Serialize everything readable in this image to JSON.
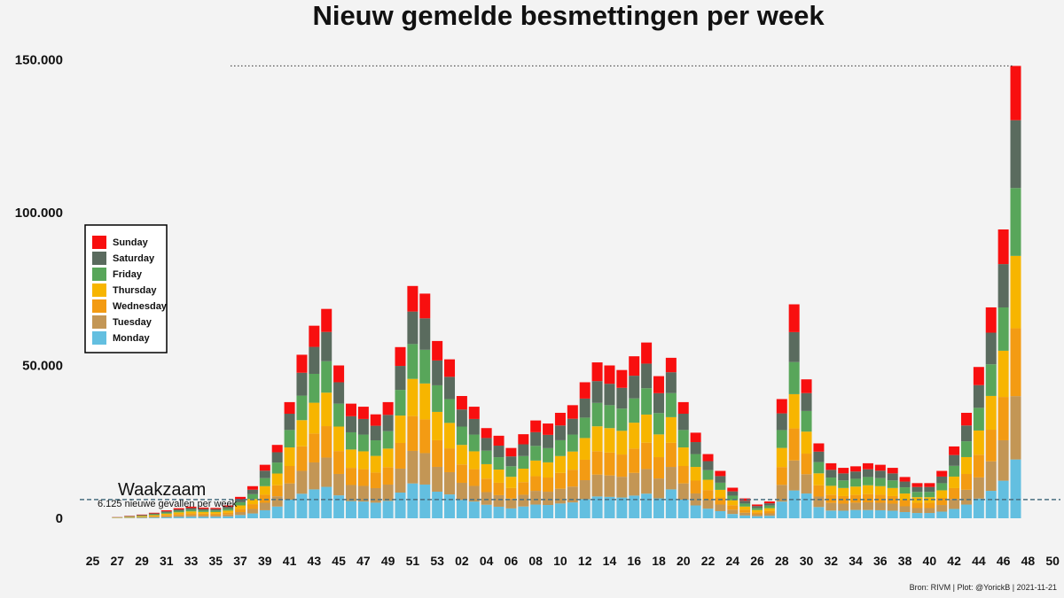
{
  "chart_data": {
    "type": "bar",
    "stacked": true,
    "title": "Nieuw gemelde besmettingen per week",
    "xlabel": "",
    "ylabel": "",
    "ylim": [
      0,
      150000
    ],
    "yticks": [
      0,
      50000,
      100000,
      150000
    ],
    "ytick_labels": [
      "0",
      "50.000",
      "100.000",
      "150.000"
    ],
    "x_axis_labels": [
      "25",
      "27",
      "29",
      "31",
      "33",
      "35",
      "37",
      "39",
      "41",
      "43",
      "45",
      "47",
      "49",
      "51",
      "53",
      "02",
      "04",
      "06",
      "08",
      "10",
      "12",
      "14",
      "16",
      "18",
      "20",
      "22",
      "24",
      "26",
      "28",
      "30",
      "32",
      "34",
      "36",
      "38",
      "40",
      "42",
      "44",
      "46",
      "48",
      "50"
    ],
    "categories": [
      "25",
      "26",
      "27",
      "28",
      "29",
      "30",
      "31",
      "32",
      "33",
      "34",
      "35",
      "36",
      "37",
      "38",
      "39",
      "40",
      "41",
      "42",
      "43",
      "44",
      "45",
      "46",
      "47",
      "48",
      "49",
      "50",
      "51",
      "52",
      "53",
      "01",
      "02",
      "03",
      "04",
      "05",
      "06",
      "07",
      "08",
      "09",
      "10",
      "11",
      "12",
      "13",
      "14",
      "15",
      "16",
      "17",
      "18",
      "19",
      "20",
      "21",
      "22",
      "23",
      "24",
      "25",
      "26",
      "27",
      "28",
      "29",
      "30",
      "31",
      "32",
      "33",
      "34",
      "35",
      "36",
      "37",
      "38",
      "39",
      "40",
      "41",
      "42",
      "43",
      "44",
      "45",
      "46",
      "47",
      "48",
      "49",
      "50"
    ],
    "totals": [
      0,
      0,
      400,
      800,
      1200,
      1800,
      2600,
      3300,
      3800,
      3500,
      3400,
      4200,
      7000,
      10500,
      17500,
      24000,
      38000,
      53500,
      63000,
      68500,
      50000,
      37500,
      36500,
      34000,
      38000,
      56000,
      76000,
      73500,
      58000,
      52000,
      40000,
      36500,
      29500,
      27000,
      23000,
      27500,
      32000,
      31000,
      34500,
      37000,
      44500,
      51000,
      50000,
      48500,
      53000,
      57500,
      46500,
      52500,
      38000,
      28000,
      21000,
      15500,
      10000,
      6500,
      4500,
      5500,
      39000,
      70000,
      45000,
      24500,
      18000,
      16500,
      17000,
      18000,
      17500,
      16500,
      13500,
      11500,
      11500,
      15500,
      23500,
      34500,
      49500,
      69000,
      94500,
      148000,
      0,
      0,
      0
    ],
    "series": [
      {
        "name": "Monday",
        "color": "#63bfe0",
        "shares": [
          0.13,
          0.13,
          0.13,
          0.13,
          0.13,
          0.13,
          0.13,
          0.14,
          0.14,
          0.14,
          0.15,
          0.15,
          0.15,
          0.15,
          0.15,
          0.16,
          0.16,
          0.15,
          0.15,
          0.15,
          0.15,
          0.15,
          0.15,
          0.15,
          0.15,
          0.15,
          0.15,
          0.15,
          0.15,
          0.15,
          0.15,
          0.15,
          0.15,
          0.14,
          0.14,
          0.14,
          0.14,
          0.14,
          0.14,
          0.14,
          0.14,
          0.14,
          0.14,
          0.14,
          0.14,
          0.14,
          0.14,
          0.18,
          0.16,
          0.15,
          0.15,
          0.15,
          0.14,
          0.14,
          0.15,
          0.15,
          0.14,
          0.13,
          0.18,
          0.15,
          0.14,
          0.15,
          0.16,
          0.15,
          0.15,
          0.15,
          0.15,
          0.15,
          0.15,
          0.14,
          0.13,
          0.13,
          0.13,
          0.13,
          0.13,
          0.13,
          0.13,
          0.13,
          0.13
        ]
      },
      {
        "name": "Tuesday",
        "color": "#c39655",
        "shares": [
          0.14,
          0.14,
          0.14,
          0.14,
          0.14,
          0.14,
          0.14,
          0.14,
          0.14,
          0.14,
          0.14,
          0.14,
          0.14,
          0.14,
          0.14,
          0.14,
          0.14,
          0.14,
          0.14,
          0.14,
          0.14,
          0.14,
          0.14,
          0.14,
          0.14,
          0.14,
          0.14,
          0.14,
          0.14,
          0.14,
          0.14,
          0.14,
          0.14,
          0.14,
          0.14,
          0.14,
          0.14,
          0.14,
          0.14,
          0.14,
          0.14,
          0.14,
          0.14,
          0.14,
          0.14,
          0.14,
          0.14,
          0.14,
          0.14,
          0.14,
          0.14,
          0.14,
          0.14,
          0.14,
          0.14,
          0.14,
          0.14,
          0.14,
          0.14,
          0.14,
          0.14,
          0.14,
          0.14,
          0.14,
          0.14,
          0.14,
          0.14,
          0.14,
          0.14,
          0.14,
          0.14,
          0.14,
          0.14,
          0.14,
          0.14,
          0.14,
          0.14,
          0.14,
          0.14
        ]
      },
      {
        "name": "Wednesday",
        "color": "#f39b13",
        "shares": [
          0.15,
          0.15,
          0.15,
          0.15,
          0.15,
          0.15,
          0.15,
          0.15,
          0.15,
          0.15,
          0.15,
          0.15,
          0.15,
          0.15,
          0.15,
          0.15,
          0.15,
          0.15,
          0.15,
          0.15,
          0.15,
          0.15,
          0.15,
          0.15,
          0.15,
          0.15,
          0.15,
          0.15,
          0.15,
          0.15,
          0.15,
          0.15,
          0.15,
          0.15,
          0.15,
          0.15,
          0.15,
          0.15,
          0.15,
          0.15,
          0.15,
          0.15,
          0.15,
          0.15,
          0.15,
          0.15,
          0.15,
          0.15,
          0.15,
          0.15,
          0.15,
          0.15,
          0.15,
          0.15,
          0.15,
          0.15,
          0.15,
          0.15,
          0.15,
          0.15,
          0.15,
          0.15,
          0.15,
          0.15,
          0.15,
          0.15,
          0.15,
          0.15,
          0.15,
          0.15,
          0.15,
          0.15,
          0.15,
          0.15,
          0.15,
          0.15,
          0.15,
          0.15,
          0.15
        ]
      },
      {
        "name": "Thursday",
        "color": "#f7b500",
        "shares": [
          0.16,
          0.16,
          0.16,
          0.16,
          0.16,
          0.16,
          0.16,
          0.16,
          0.16,
          0.16,
          0.16,
          0.16,
          0.16,
          0.16,
          0.16,
          0.16,
          0.16,
          0.16,
          0.16,
          0.16,
          0.16,
          0.16,
          0.16,
          0.16,
          0.16,
          0.16,
          0.16,
          0.16,
          0.16,
          0.16,
          0.16,
          0.16,
          0.16,
          0.16,
          0.16,
          0.16,
          0.16,
          0.16,
          0.16,
          0.16,
          0.16,
          0.16,
          0.16,
          0.16,
          0.16,
          0.16,
          0.16,
          0.16,
          0.16,
          0.16,
          0.16,
          0.16,
          0.16,
          0.16,
          0.16,
          0.16,
          0.16,
          0.16,
          0.16,
          0.16,
          0.16,
          0.16,
          0.16,
          0.16,
          0.16,
          0.16,
          0.16,
          0.16,
          0.16,
          0.16,
          0.16,
          0.16,
          0.16,
          0.16,
          0.16,
          0.16,
          0.16,
          0.16,
          0.16
        ]
      },
      {
        "name": "Friday",
        "color": "#58a65a",
        "shares": [
          0.15,
          0.15,
          0.15,
          0.15,
          0.15,
          0.15,
          0.15,
          0.15,
          0.15,
          0.15,
          0.15,
          0.15,
          0.15,
          0.15,
          0.15,
          0.15,
          0.15,
          0.15,
          0.15,
          0.15,
          0.15,
          0.15,
          0.15,
          0.15,
          0.15,
          0.15,
          0.15,
          0.15,
          0.15,
          0.15,
          0.15,
          0.15,
          0.15,
          0.15,
          0.15,
          0.15,
          0.15,
          0.15,
          0.15,
          0.15,
          0.15,
          0.15,
          0.15,
          0.15,
          0.15,
          0.15,
          0.15,
          0.15,
          0.15,
          0.15,
          0.15,
          0.15,
          0.15,
          0.15,
          0.15,
          0.15,
          0.15,
          0.15,
          0.15,
          0.15,
          0.15,
          0.15,
          0.15,
          0.15,
          0.15,
          0.15,
          0.15,
          0.15,
          0.15,
          0.15,
          0.15,
          0.15,
          0.15,
          0.15,
          0.15,
          0.15,
          0.15,
          0.15,
          0.15
        ]
      },
      {
        "name": "Saturday",
        "color": "#5a6b5e",
        "shares": [
          0.14,
          0.14,
          0.14,
          0.14,
          0.14,
          0.14,
          0.14,
          0.14,
          0.14,
          0.14,
          0.14,
          0.14,
          0.14,
          0.14,
          0.14,
          0.14,
          0.14,
          0.14,
          0.14,
          0.14,
          0.14,
          0.14,
          0.14,
          0.14,
          0.14,
          0.14,
          0.14,
          0.14,
          0.14,
          0.14,
          0.14,
          0.14,
          0.14,
          0.14,
          0.14,
          0.14,
          0.14,
          0.14,
          0.14,
          0.14,
          0.14,
          0.14,
          0.14,
          0.14,
          0.14,
          0.14,
          0.14,
          0.13,
          0.14,
          0.14,
          0.14,
          0.14,
          0.14,
          0.14,
          0.14,
          0.14,
          0.14,
          0.14,
          0.13,
          0.14,
          0.14,
          0.14,
          0.14,
          0.14,
          0.14,
          0.14,
          0.14,
          0.14,
          0.14,
          0.14,
          0.15,
          0.15,
          0.15,
          0.15,
          0.15,
          0.15,
          0.15,
          0.15,
          0.15
        ]
      },
      {
        "name": "Sunday",
        "color": "#f80f0f",
        "shares": [
          0.13,
          0.13,
          0.13,
          0.13,
          0.13,
          0.13,
          0.13,
          0.12,
          0.12,
          0.12,
          0.11,
          0.11,
          0.11,
          0.11,
          0.11,
          0.1,
          0.1,
          0.11,
          0.11,
          0.11,
          0.11,
          0.11,
          0.11,
          0.11,
          0.11,
          0.11,
          0.11,
          0.11,
          0.11,
          0.11,
          0.11,
          0.11,
          0.11,
          0.12,
          0.12,
          0.12,
          0.12,
          0.12,
          0.12,
          0.12,
          0.12,
          0.12,
          0.12,
          0.12,
          0.12,
          0.12,
          0.12,
          0.09,
          0.1,
          0.11,
          0.11,
          0.11,
          0.12,
          0.12,
          0.11,
          0.11,
          0.12,
          0.13,
          0.1,
          0.11,
          0.12,
          0.11,
          0.1,
          0.11,
          0.11,
          0.11,
          0.11,
          0.11,
          0.11,
          0.12,
          0.12,
          0.12,
          0.12,
          0.12,
          0.12,
          0.12,
          0.12,
          0.12,
          0.12
        ]
      }
    ],
    "legend": {
      "position": "left",
      "order": [
        "Sunday",
        "Saturday",
        "Friday",
        "Thursday",
        "Wednesday",
        "Tuesday",
        "Monday"
      ]
    },
    "reference_lines": [
      {
        "value": 6125,
        "style": "dashed",
        "color": "#4a6f80",
        "label_big": "Waakzaam",
        "label_small": "6.125 nieuwe gevallen per week"
      },
      {
        "value": 148000,
        "style": "dotted",
        "color": "#333333"
      }
    ],
    "grid": false
  },
  "source_text": "Bron: RIVM | Plot: @YorickB |  2021-11-21"
}
